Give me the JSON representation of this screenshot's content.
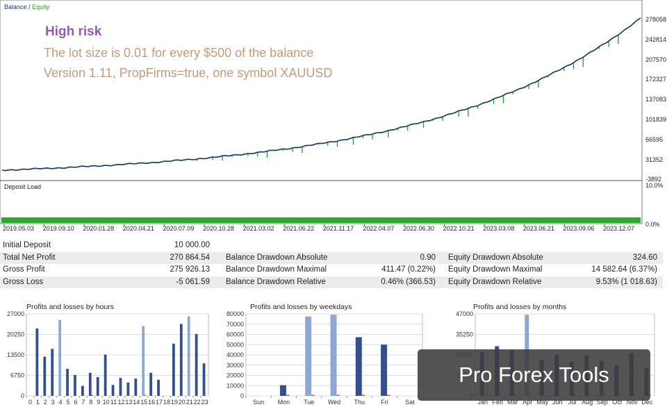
{
  "main_chart": {
    "legend": {
      "balance": "Balance",
      "separator": "/",
      "equity": "Equity"
    },
    "overlay": {
      "title": "High risk",
      "line1": "The lot size is 0.01 for every $500 of the balance",
      "line2": "Version 1.11, PropFirms=true, one symbol XAUUSD"
    },
    "y_ticks": [
      "278058",
      "242814",
      "207570",
      "172327",
      "137083",
      "101839",
      "66595",
      "31352",
      "-3892"
    ],
    "deposit_label": "Deposit Load",
    "deposit_ticks": [
      "10.0%",
      "0.0%"
    ],
    "x_ticks": [
      "2019.05.03",
      "2019.09.10",
      "2020.01.28",
      "2020.04.21",
      "2020.07.09",
      "2020.10.28",
      "2021.03.02",
      "2021.06.22",
      "2021.11.17",
      "2022.04.07",
      "2022.06.30",
      "2022.10.21",
      "2023.03.08",
      "2023.06.21",
      "2023.09.06",
      "2023.12.07"
    ],
    "colors": {
      "balance": "#1a3a6b",
      "equity": "#1fa01f",
      "deposit": "#2ea82e"
    }
  },
  "stats": {
    "rows": [
      {
        "l1": "Initial Deposit",
        "v1": "10 000.00",
        "l2": "",
        "v2": "",
        "l3": "",
        "v3": ""
      },
      {
        "l1": "Total Net Profit",
        "v1": "270 864.54",
        "l2": "Balance Drawdown Absolute",
        "v2": "0.90",
        "l3": "Equity Drawdown Absolute",
        "v3": "324.60"
      },
      {
        "l1": "Gross Profit",
        "v1": "275 926.13",
        "l2": "Balance Drawdown Maximal",
        "v2": "411.47 (0.22%)",
        "l3": "Equity Drawdown Maximal",
        "v3": "14 582.64 (6.37%)"
      },
      {
        "l1": "Gross Loss",
        "v1": "-5 061.59",
        "l2": "Balance Drawdown Relative",
        "v2": "0.46% (366.53)",
        "l3": "Equity Drawdown Relative",
        "v3": "9.53% (1 018.63)"
      }
    ]
  },
  "chart_data": [
    {
      "type": "bar",
      "title": "Profits and losses by hours",
      "categories": [
        "0",
        "1",
        "2",
        "3",
        "4",
        "5",
        "6",
        "7",
        "8",
        "9",
        "10",
        "11",
        "12",
        "13",
        "14",
        "15",
        "16",
        "17",
        "18",
        "19",
        "20",
        "21",
        "22",
        "23"
      ],
      "y_ticks": [
        "27000",
        "20250",
        "13500",
        "6750",
        "0"
      ],
      "ylim": [
        0,
        27000
      ],
      "series": [
        {
          "values": [
            0,
            22200,
            12900,
            15500,
            25000,
            8900,
            6900,
            3300,
            7600,
            6200,
            13600,
            3600,
            5900,
            4400,
            5700,
            23000,
            7600,
            5300,
            0,
            17200,
            23700,
            26200,
            20400,
            10700
          ]
        },
        {
          "values": [
            0,
            0,
            0,
            0,
            0,
            0,
            0,
            0,
            -300,
            0,
            0,
            0,
            0,
            0,
            0,
            -300,
            0,
            0,
            0,
            0,
            0,
            0,
            0,
            0
          ]
        }
      ]
    },
    {
      "type": "bar",
      "title": "Profits and losses by weekdays",
      "categories": [
        "Sun",
        "Mon",
        "Tue",
        "Wed",
        "Thu",
        "Fri",
        "Sat"
      ],
      "y_ticks": [
        "80000",
        "70000",
        "60000",
        "50000",
        "40000",
        "30000",
        "20000",
        "10000",
        "0"
      ],
      "ylim": [
        0,
        80000
      ],
      "series": [
        {
          "values": [
            0,
            10400,
            77500,
            79300,
            57300,
            50000,
            0
          ]
        },
        {
          "values": [
            0,
            -400,
            -900,
            -1000,
            -800,
            -600,
            0
          ]
        }
      ]
    },
    {
      "type": "bar",
      "title": "Profits and losses by months",
      "categories": [
        "Jan",
        "Feb",
        "Mar",
        "Apr",
        "May",
        "Jun",
        "Jul",
        "Aug",
        "Sep",
        "Oct",
        "Nov",
        "Dec"
      ],
      "y_ticks": [
        "47000",
        "35250",
        "23500",
        "11750",
        "0"
      ],
      "ylim": [
        0,
        47000
      ],
      "series": [
        {
          "values": [
            25000,
            28500,
            26000,
            46500,
            20500,
            23500,
            19500,
            23000,
            20000,
            17500,
            24500,
            16000
          ]
        },
        {
          "values": [
            -300,
            -200,
            -300,
            -200,
            -300,
            -300,
            -300,
            -500,
            -300,
            -300,
            -400,
            -300
          ]
        }
      ]
    }
  ],
  "watermark": "Pro Forex Tools"
}
